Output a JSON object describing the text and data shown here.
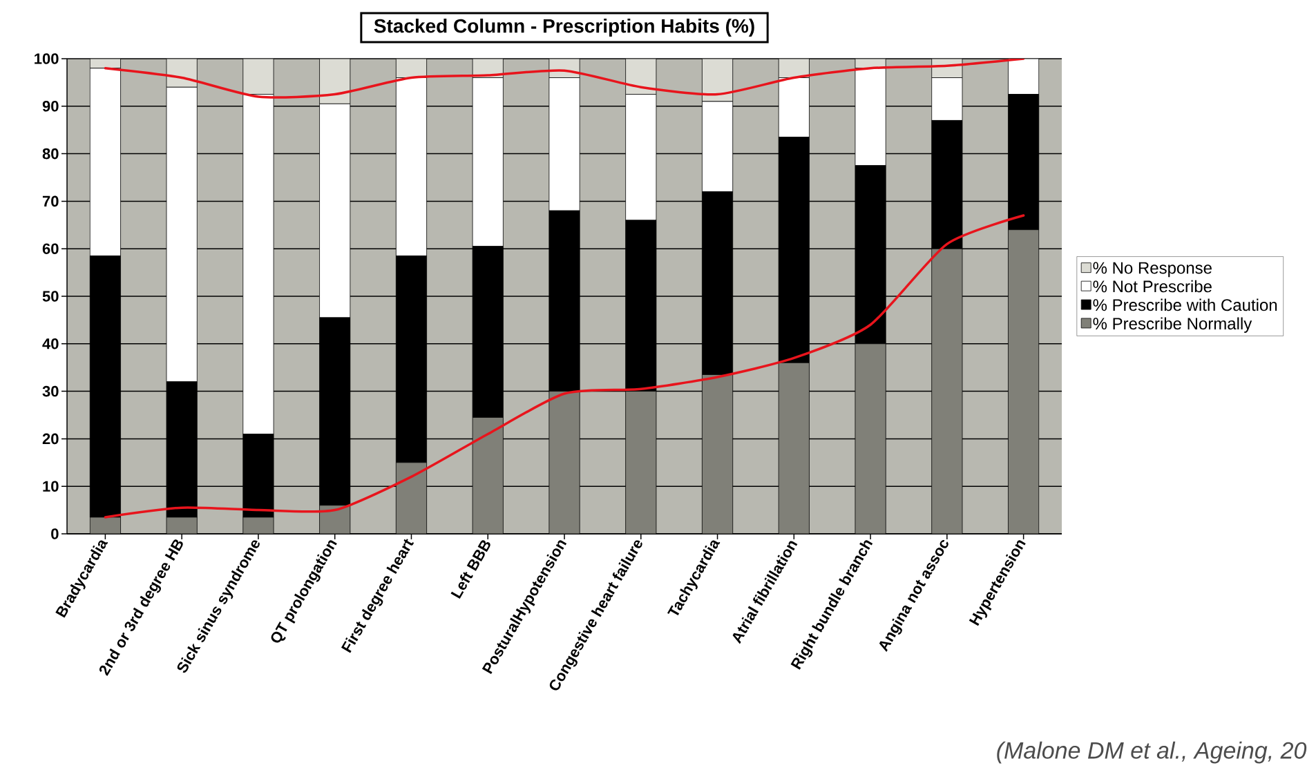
{
  "chart_data": {
    "type": "bar",
    "stacked": true,
    "title": "Stacked Column - Prescription Habits (%)",
    "categories": [
      "Bradycardia",
      "2nd or 3rd degree HB",
      "Sick sinus syndrome",
      "QT prolongation",
      "First degree heart",
      "Left BBB",
      "PosturalHypotension",
      "Congestive heart failure",
      "Tachycardia",
      "Atrial fibrillation",
      "Right bundle branch",
      "Angina not assoc",
      "Hypertension"
    ],
    "series": [
      {
        "name": "% Prescribe Normally",
        "color": "#808078",
        "values": [
          3.5,
          3.5,
          3.5,
          6,
          15,
          24.5,
          30,
          30,
          33.5,
          36,
          40,
          60,
          64
        ]
      },
      {
        "name": "% Prescribe with Caution",
        "color": "#000000",
        "values": [
          55,
          28.5,
          17.5,
          39.5,
          43.5,
          36,
          38,
          36,
          38.5,
          47.5,
          37.5,
          27,
          28.5
        ]
      },
      {
        "name": "% Not Prescribe",
        "color": "#ffffff",
        "values": [
          39.5,
          62,
          71.5,
          45,
          37.5,
          35.5,
          28,
          26.5,
          19,
          12.5,
          20.5,
          9,
          7.5
        ]
      },
      {
        "name": "% No Response",
        "color": "#dcdcd4",
        "values": [
          2,
          6,
          7.5,
          9.5,
          4,
          4,
          4,
          7.5,
          9,
          4,
          2,
          4,
          0
        ]
      },
      {
        "type": "line",
        "color": "#e8141c",
        "values": [
          98,
          96,
          92,
          92.5,
          96,
          96.5,
          97.5,
          94,
          92.5,
          96,
          98,
          98.5,
          100
        ]
      },
      {
        "type": "line",
        "color": "#e8141c",
        "values": [
          3.5,
          5.5,
          5,
          5,
          12,
          21,
          29.5,
          30.5,
          33,
          37,
          44,
          61,
          67
        ]
      }
    ],
    "ylim": [
      0,
      100
    ],
    "yticks": [
      0,
      10,
      20,
      30,
      40,
      50,
      60,
      70,
      80,
      90,
      100
    ],
    "grid": "y",
    "legend": "right",
    "annotations": [
      "(Malone DM et al., Ageing, 20"
    ]
  }
}
